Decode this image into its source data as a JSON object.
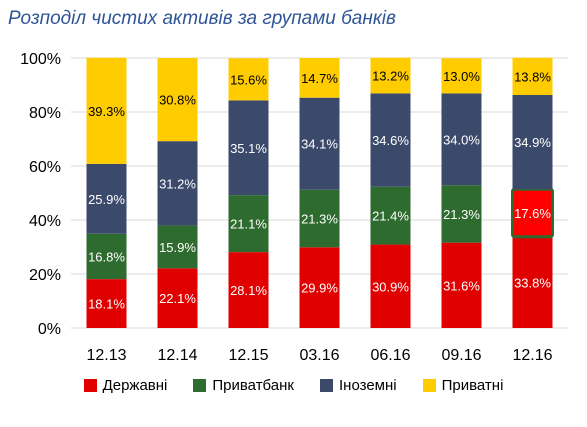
{
  "title": "Розподіл чистих активів за групами банків",
  "chart_data": {
    "type": "bar",
    "stacked": true,
    "categories": [
      "12.13",
      "12.14",
      "12.15",
      "03.16",
      "06.16",
      "09.16",
      "12.16"
    ],
    "ylim": [
      0,
      100
    ],
    "y_ticks": [
      "0%",
      "20%",
      "40%",
      "60%",
      "80%",
      "100%"
    ],
    "grid": true,
    "legend_position": "bottom",
    "series": [
      {
        "name": "Державні",
        "color": "#e00000",
        "values": [
          18.1,
          22.1,
          28.1,
          29.9,
          30.9,
          31.6,
          33.8
        ],
        "labels": [
          "18.1%",
          "22.1%",
          "28.1%",
          "29.9%",
          "30.9%",
          "31.6%",
          "33.8%"
        ]
      },
      {
        "name": "Приватбанк",
        "color": "#2e6b2e",
        "values": [
          16.8,
          15.9,
          21.1,
          21.3,
          21.4,
          21.3,
          17.6
        ],
        "labels": [
          "16.8%",
          "15.9%",
          "21.1%",
          "21.3%",
          "21.4%",
          "21.3%",
          "17.6%"
        ]
      },
      {
        "name": "Іноземні",
        "color": "#3b4a6b",
        "values": [
          25.9,
          31.2,
          35.1,
          34.1,
          34.6,
          34.0,
          34.9
        ],
        "labels": [
          "25.9%",
          "31.2%",
          "35.1%",
          "34.1%",
          "34.6%",
          "34.0%",
          "34.9%"
        ]
      },
      {
        "name": "Приватні",
        "color": "#ffcc00",
        "values": [
          39.3,
          30.8,
          15.6,
          14.7,
          13.2,
          13.0,
          13.8
        ],
        "labels": [
          "39.3%",
          "30.8%",
          "15.6%",
          "14.7%",
          "13.2%",
          "13.0%",
          "13.8%"
        ]
      }
    ],
    "highlight": {
      "series": 1,
      "category": 6,
      "fill": "#ff0000",
      "border": "#2e6b2e"
    }
  }
}
